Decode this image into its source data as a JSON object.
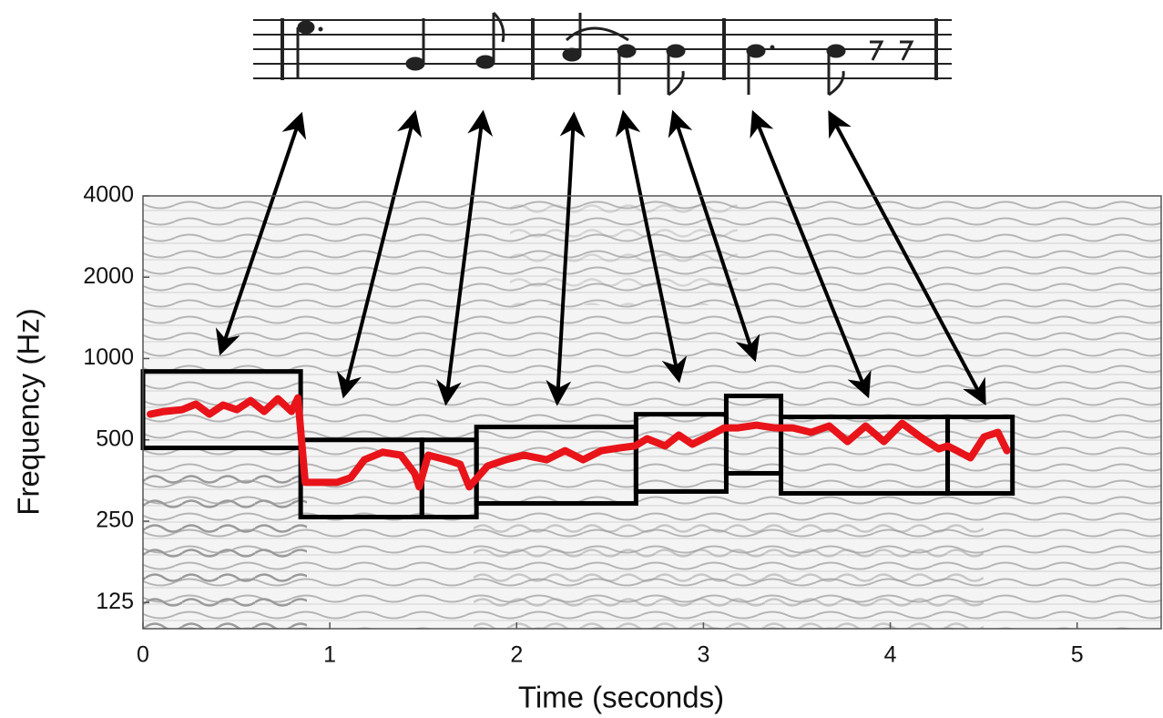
{
  "chart_data": {
    "type": "spectrogram",
    "x_label": "Time (seconds)",
    "y_label": "Frequency (Hz)",
    "xlim": [
      0,
      5.45
    ],
    "xticks": [
      0,
      1,
      2,
      3,
      4,
      5
    ],
    "ylim": [
      100,
      4000
    ],
    "yticks": [
      125,
      250,
      500,
      1000,
      2000,
      4000
    ],
    "yscale": "log",
    "grid": false,
    "notes": {
      "color": "#000000",
      "start": [
        0,
        0.844,
        1.493,
        1.785,
        2.639,
        3.122,
        3.415,
        4.307
      ],
      "end": [
        0.844,
        1.493,
        1.785,
        2.639,
        3.122,
        3.415,
        4.307,
        4.654
      ],
      "low": [
        467,
        259,
        259,
        291,
        322,
        376,
        317,
        317
      ],
      "high": [
        896,
        500,
        500,
        558,
        622,
        727,
        608,
        608
      ]
    },
    "contour": {
      "color": "#e8141a",
      "x": [
        0.039,
        0.112,
        0.21,
        0.283,
        0.356,
        0.429,
        0.502,
        0.576,
        0.649,
        0.722,
        0.795,
        0.829,
        0.868,
        0.941,
        1.039,
        1.112,
        1.185,
        1.283,
        1.38,
        1.454,
        1.478,
        1.527,
        1.624,
        1.698,
        1.746,
        1.844,
        1.941,
        2.039,
        2.161,
        2.259,
        2.356,
        2.454,
        2.551,
        2.634,
        2.698,
        2.795,
        2.868,
        2.941,
        3.039,
        3.112,
        3.185,
        3.283,
        3.38,
        3.478,
        3.576,
        3.673,
        3.771,
        3.868,
        3.966,
        4.063,
        4.161,
        4.259,
        4.307,
        4.356,
        4.429,
        4.502,
        4.576,
        4.624
      ],
      "values": [
        622,
        637,
        647,
        678,
        622,
        673,
        647,
        699,
        637,
        710,
        637,
        715,
        348,
        348,
        348,
        362,
        422,
        450,
        439,
        376,
        335,
        439,
        422,
        406,
        335,
        400,
        422,
        439,
        422,
        456,
        422,
        456,
        467,
        475,
        505,
        475,
        521,
        482,
        521,
        554,
        554,
        567,
        554,
        554,
        533,
        563,
        493,
        563,
        493,
        576,
        513,
        463,
        475,
        456,
        429,
        513,
        533,
        456
      ]
    }
  }
}
